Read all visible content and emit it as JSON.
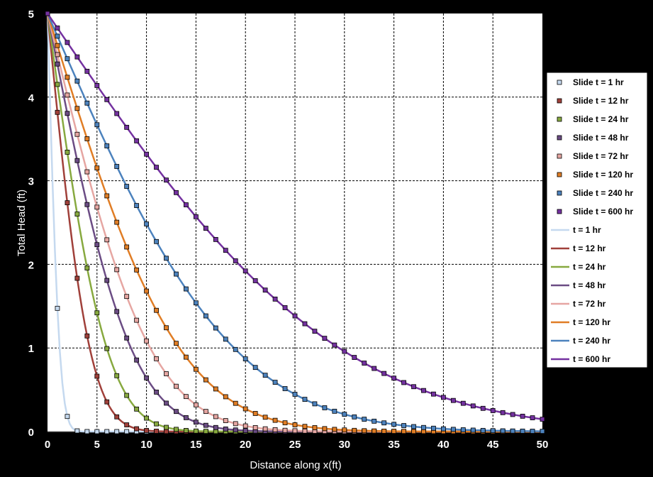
{
  "chart_data": {
    "type": "line",
    "title": "",
    "xlabel": "Distance along x(ft)",
    "ylabel": "Total Head (ft)",
    "xlim": [
      0,
      50
    ],
    "ylim": [
      0,
      5
    ],
    "x_ticks": [
      "0",
      "5",
      "10",
      "15",
      "20",
      "25",
      "30",
      "35",
      "40",
      "45",
      "50"
    ],
    "y_ticks": [
      "0",
      "1",
      "2",
      "3",
      "4",
      "5"
    ],
    "grid": true,
    "legend_position": "right",
    "marker_x_step": 1,
    "line_x_step": 0.25,
    "marker_series": [
      {
        "name": "Slide t = 1 hr",
        "L": 1.35,
        "color": "#c5d9ef"
      },
      {
        "name": "Slide t = 12 hr",
        "L": 4.7,
        "color": "#a0403a"
      },
      {
        "name": "Slide t = 24 hr",
        "L": 6.6,
        "color": "#87a93f"
      },
      {
        "name": "Slide t = 48 hr",
        "L": 9.3,
        "color": "#6b4c84"
      },
      {
        "name": "Slide t = 72 hr",
        "L": 11.45,
        "color": "#e6a6a2"
      },
      {
        "name": "Slide t = 120 hr",
        "L": 14.7,
        "color": "#e07d25"
      },
      {
        "name": "Slide t = 240 hr",
        "L": 20.8,
        "color": "#4c82bd"
      },
      {
        "name": "Slide t = 600 hr",
        "L": 32.5,
        "color": "#7431a0"
      }
    ],
    "series": [
      {
        "name": "t = 1 hr",
        "L": 1.35,
        "color": "#c5d9ef"
      },
      {
        "name": "t = 12 hr",
        "L": 4.7,
        "color": "#a0403a"
      },
      {
        "name": "t = 24 hr",
        "L": 6.6,
        "color": "#87a93f"
      },
      {
        "name": "t = 48 hr",
        "L": 9.3,
        "color": "#6b4c84"
      },
      {
        "name": "t = 72 hr",
        "L": 11.45,
        "color": "#e6a6a2"
      },
      {
        "name": "t = 120 hr",
        "L": 14.7,
        "color": "#e07d25"
      },
      {
        "name": "t = 240 hr",
        "L": 20.8,
        "color": "#4c82bd"
      },
      {
        "name": "t = 600 hr",
        "L": 32.5,
        "color": "#7431a0"
      }
    ],
    "model": "head = 5 * erfc(x / L)"
  }
}
